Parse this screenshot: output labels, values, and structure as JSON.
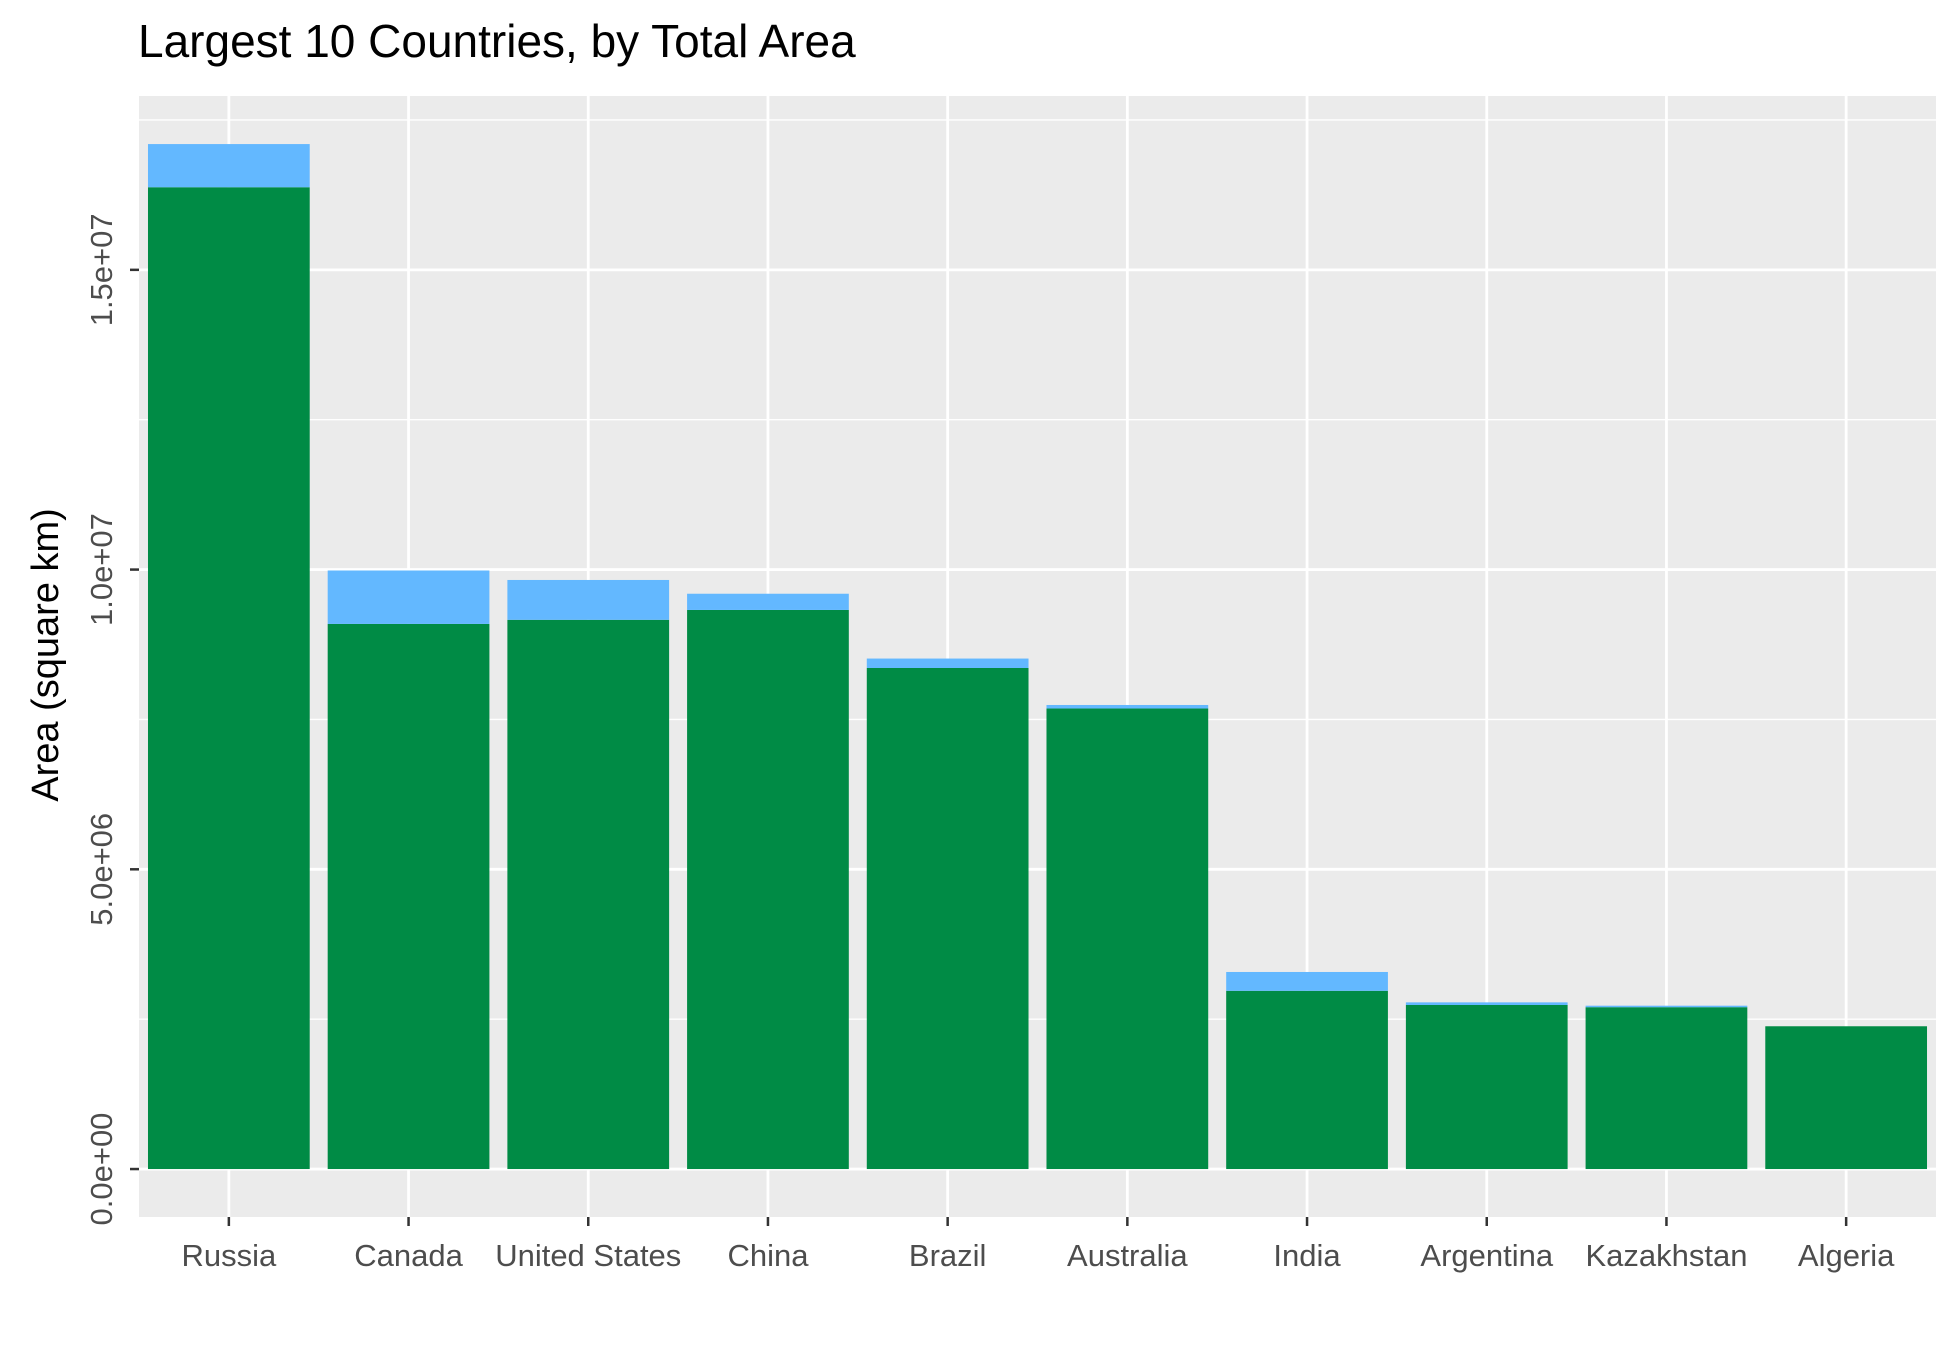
{
  "chart_data": {
    "type": "bar",
    "title": "Largest 10 Countries, by Total Area",
    "xlabel": "",
    "ylabel": "Area (square km)",
    "categories": [
      "Russia",
      "Canada",
      "United States",
      "China",
      "Brazil",
      "Australia",
      "India",
      "Argentina",
      "Kazakhstan",
      "Algeria"
    ],
    "series": [
      {
        "values": [
          16377742,
          9093507,
          9161966,
          9326410,
          8358140,
          7682300,
          2973193,
          2736690,
          2699700,
          2381741
        ],
        "color": "#008b45"
      },
      {
        "values": [
          720500,
          891163,
          664707,
          270550,
          157630,
          58920,
          314070,
          43710,
          25200,
          0
        ],
        "color": "#63b8ff"
      }
    ],
    "stacked": true,
    "ylim": [
      -800000,
      17900000
    ],
    "yticks": [
      0,
      5000000,
      10000000,
      15000000
    ],
    "ytick_labels": [
      "0.0e+00",
      "5.0e+06",
      "1.0e+07",
      "1.5e+07"
    ],
    "grid": true,
    "legend": "none",
    "panel_background": "#ebebeb",
    "grid_color": "#ffffff"
  }
}
